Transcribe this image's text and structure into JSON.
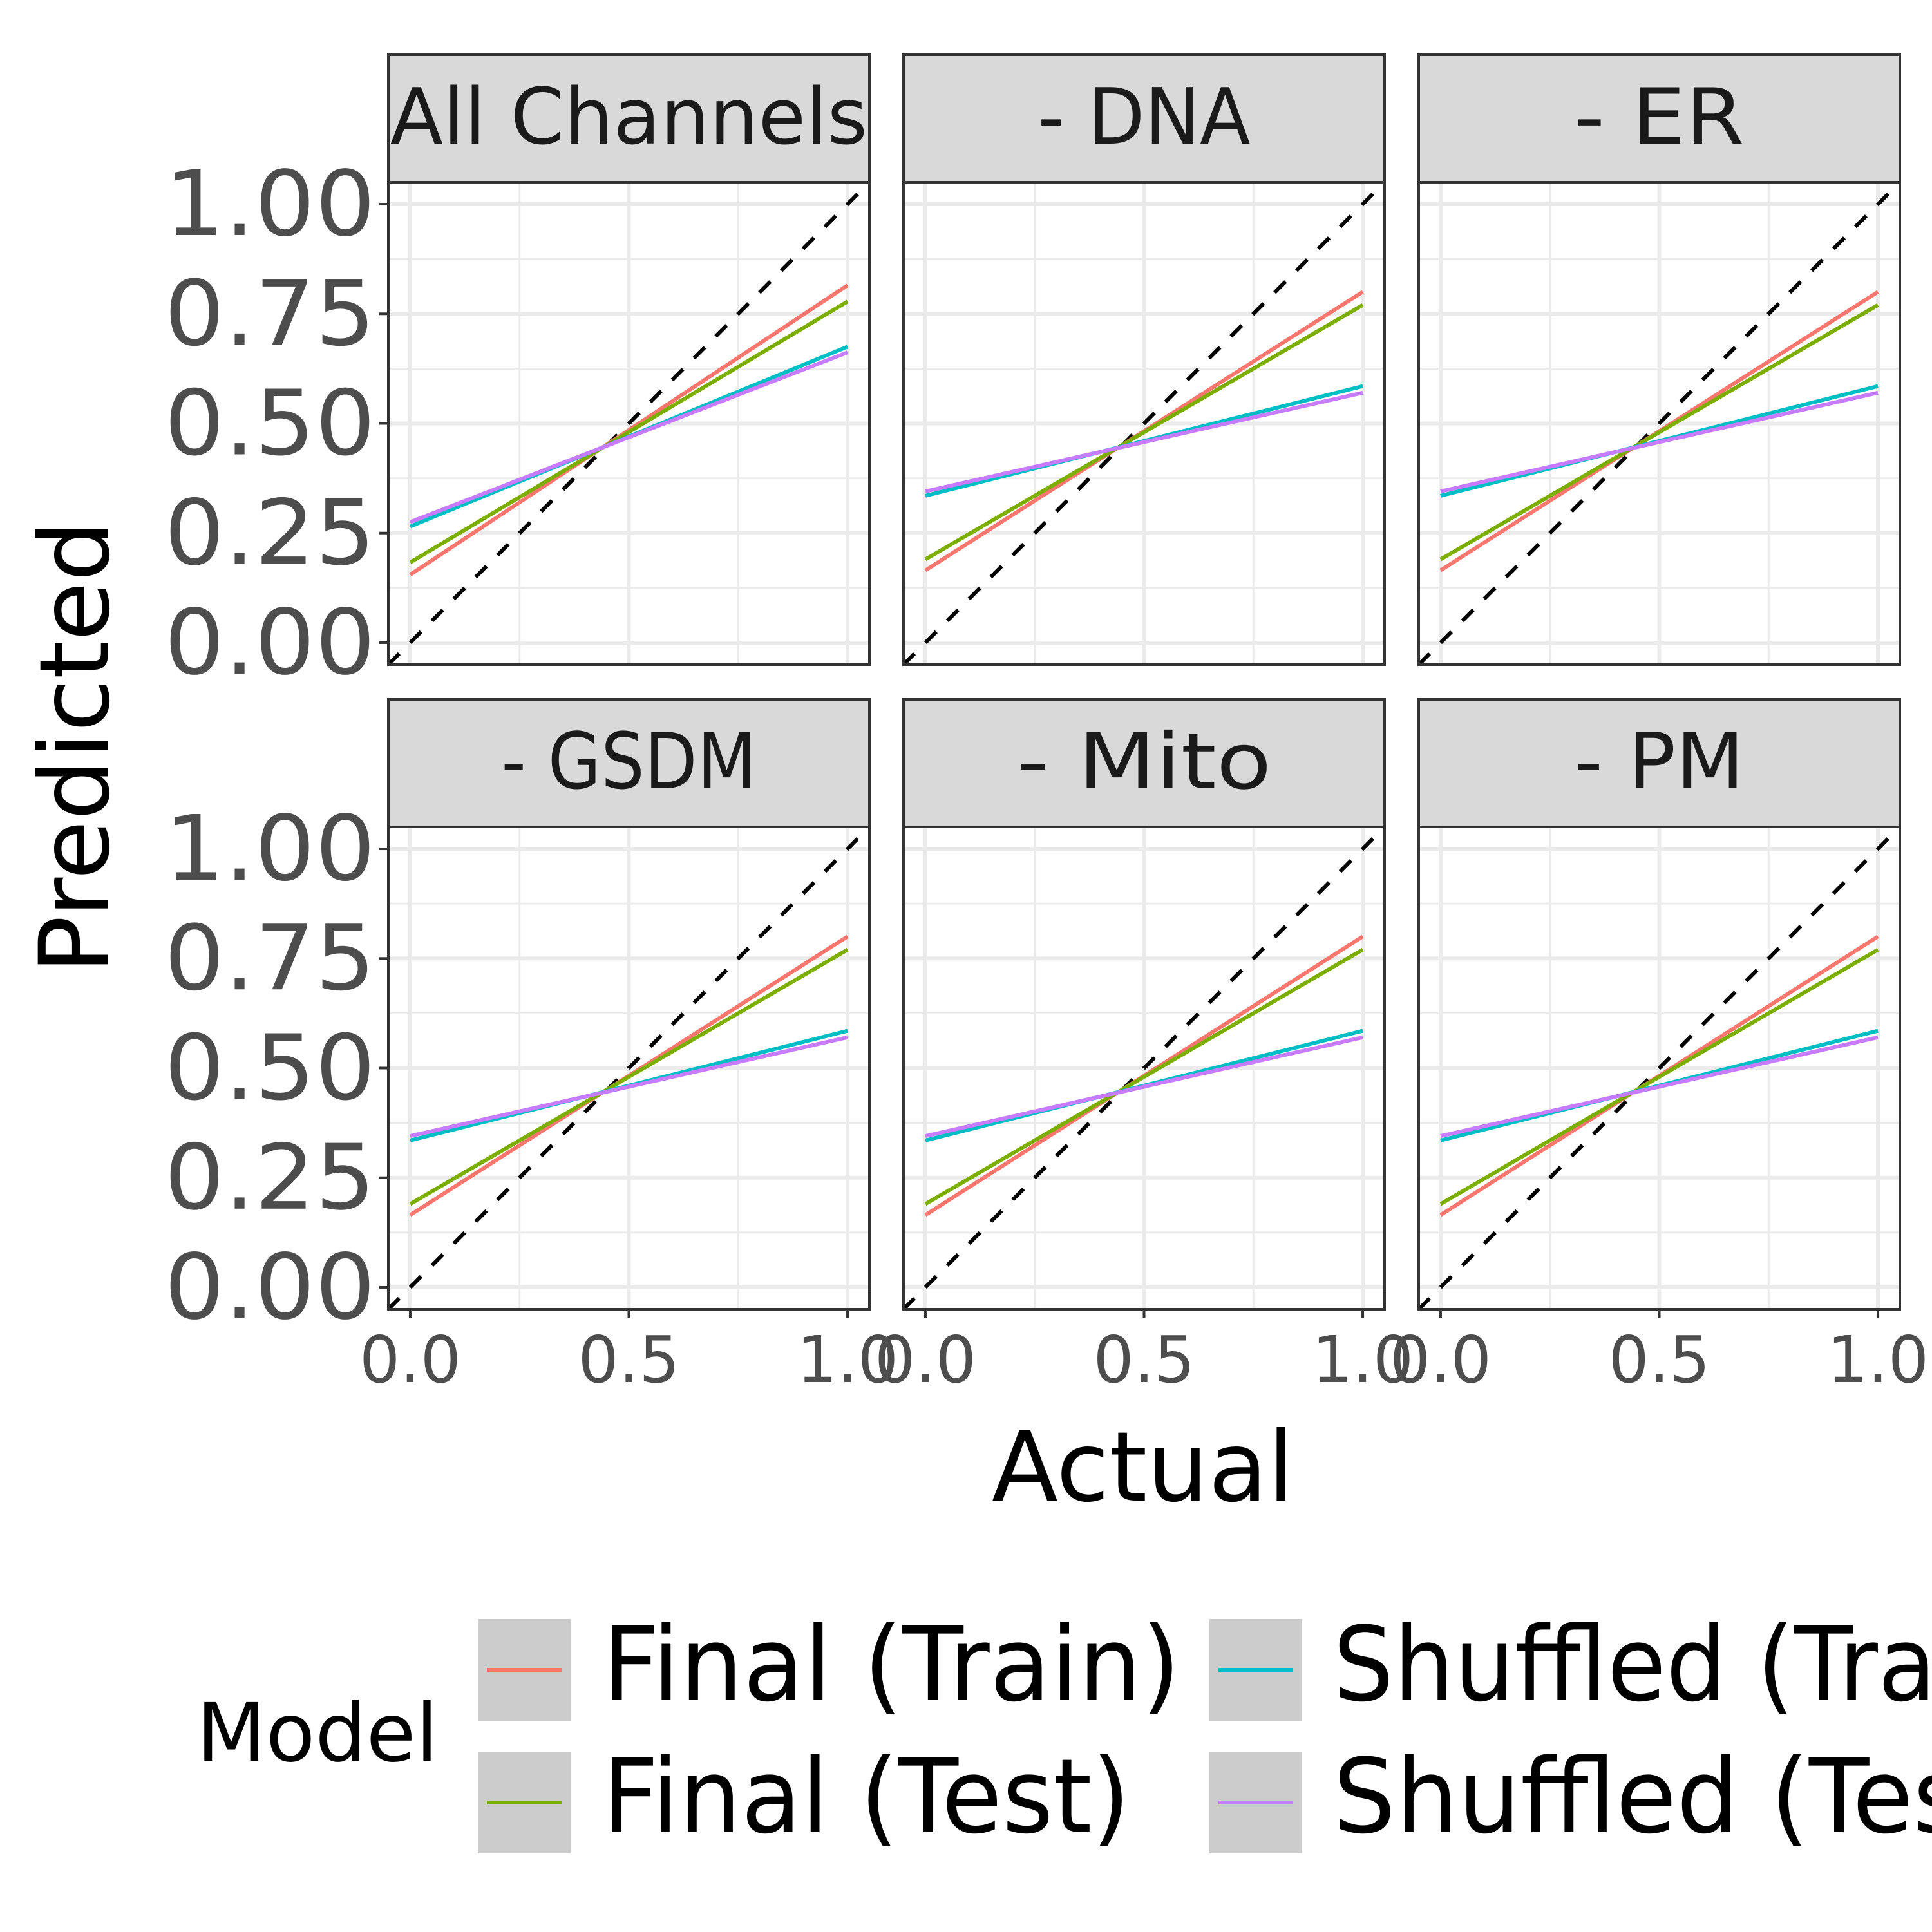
{
  "chart_data": {
    "type": "line",
    "xlabel": "Actual",
    "ylabel": "Predicted",
    "xlim": [
      -0.05,
      1.05
    ],
    "ylim": [
      -0.05,
      1.05
    ],
    "x_ticks": [
      "0.0",
      "0.5",
      "1.0"
    ],
    "y_ticks": [
      "0.00",
      "0.25",
      "0.50",
      "0.75",
      "1.00"
    ],
    "grid": true,
    "legend": {
      "title": "Model",
      "placement": "bottom",
      "entries": [
        "Final (Train)",
        "Final (Test)",
        "Shuffled (Train)",
        "Shuffled (Test)"
      ]
    },
    "colors": {
      "Final (Train)": "#F8766D",
      "Final (Test)": "#7CAE00",
      "Shuffled (Train)": "#00BFC4",
      "Shuffled (Test)": "#C77CFF",
      "reference": "#000000"
    },
    "reference_line": {
      "style": "dashed",
      "x": [
        -0.05,
        1.05
      ],
      "y": [
        -0.05,
        1.05
      ]
    },
    "panels": [
      {
        "title": "All Channels",
        "series": [
          {
            "name": "Final (Train)",
            "x": [
              0,
              1
            ],
            "y": [
              0.155,
              0.815
            ]
          },
          {
            "name": "Final (Test)",
            "x": [
              0,
              1
            ],
            "y": [
              0.183,
              0.778
            ]
          },
          {
            "name": "Shuffled (Train)",
            "x": [
              0,
              1
            ],
            "y": [
              0.265,
              0.675
            ]
          },
          {
            "name": "Shuffled (Test)",
            "x": [
              0,
              1
            ],
            "y": [
              0.275,
              0.662
            ]
          }
        ]
      },
      {
        "title": "- DNA",
        "series": [
          {
            "name": "Final (Train)",
            "x": [
              0,
              1
            ],
            "y": [
              0.165,
              0.8
            ]
          },
          {
            "name": "Final (Test)",
            "x": [
              0,
              1
            ],
            "y": [
              0.19,
              0.77
            ]
          },
          {
            "name": "Shuffled (Train)",
            "x": [
              0,
              1
            ],
            "y": [
              0.335,
              0.585
            ]
          },
          {
            "name": "Shuffled (Test)",
            "x": [
              0,
              1
            ],
            "y": [
              0.345,
              0.57
            ]
          }
        ]
      },
      {
        "title": "- ER",
        "series": [
          {
            "name": "Final (Train)",
            "x": [
              0,
              1
            ],
            "y": [
              0.165,
              0.8
            ]
          },
          {
            "name": "Final (Test)",
            "x": [
              0,
              1
            ],
            "y": [
              0.19,
              0.77
            ]
          },
          {
            "name": "Shuffled (Train)",
            "x": [
              0,
              1
            ],
            "y": [
              0.335,
              0.585
            ]
          },
          {
            "name": "Shuffled (Test)",
            "x": [
              0,
              1
            ],
            "y": [
              0.345,
              0.57
            ]
          }
        ]
      },
      {
        "title": "- GSDM",
        "series": [
          {
            "name": "Final (Train)",
            "x": [
              0,
              1
            ],
            "y": [
              0.165,
              0.8
            ]
          },
          {
            "name": "Final (Test)",
            "x": [
              0,
              1
            ],
            "y": [
              0.19,
              0.77
            ]
          },
          {
            "name": "Shuffled (Train)",
            "x": [
              0,
              1
            ],
            "y": [
              0.335,
              0.585
            ]
          },
          {
            "name": "Shuffled (Test)",
            "x": [
              0,
              1
            ],
            "y": [
              0.345,
              0.57
            ]
          }
        ]
      },
      {
        "title": "- Mito",
        "series": [
          {
            "name": "Final (Train)",
            "x": [
              0,
              1
            ],
            "y": [
              0.165,
              0.8
            ]
          },
          {
            "name": "Final (Test)",
            "x": [
              0,
              1
            ],
            "y": [
              0.19,
              0.77
            ]
          },
          {
            "name": "Shuffled (Train)",
            "x": [
              0,
              1
            ],
            "y": [
              0.335,
              0.585
            ]
          },
          {
            "name": "Shuffled (Test)",
            "x": [
              0,
              1
            ],
            "y": [
              0.345,
              0.57
            ]
          }
        ]
      },
      {
        "title": "- PM",
        "series": [
          {
            "name": "Final (Train)",
            "x": [
              0,
              1
            ],
            "y": [
              0.165,
              0.8
            ]
          },
          {
            "name": "Final (Test)",
            "x": [
              0,
              1
            ],
            "y": [
              0.19,
              0.77
            ]
          },
          {
            "name": "Shuffled (Train)",
            "x": [
              0,
              1
            ],
            "y": [
              0.335,
              0.585
            ]
          },
          {
            "name": "Shuffled (Test)",
            "x": [
              0,
              1
            ],
            "y": [
              0.345,
              0.57
            ]
          }
        ]
      }
    ]
  }
}
